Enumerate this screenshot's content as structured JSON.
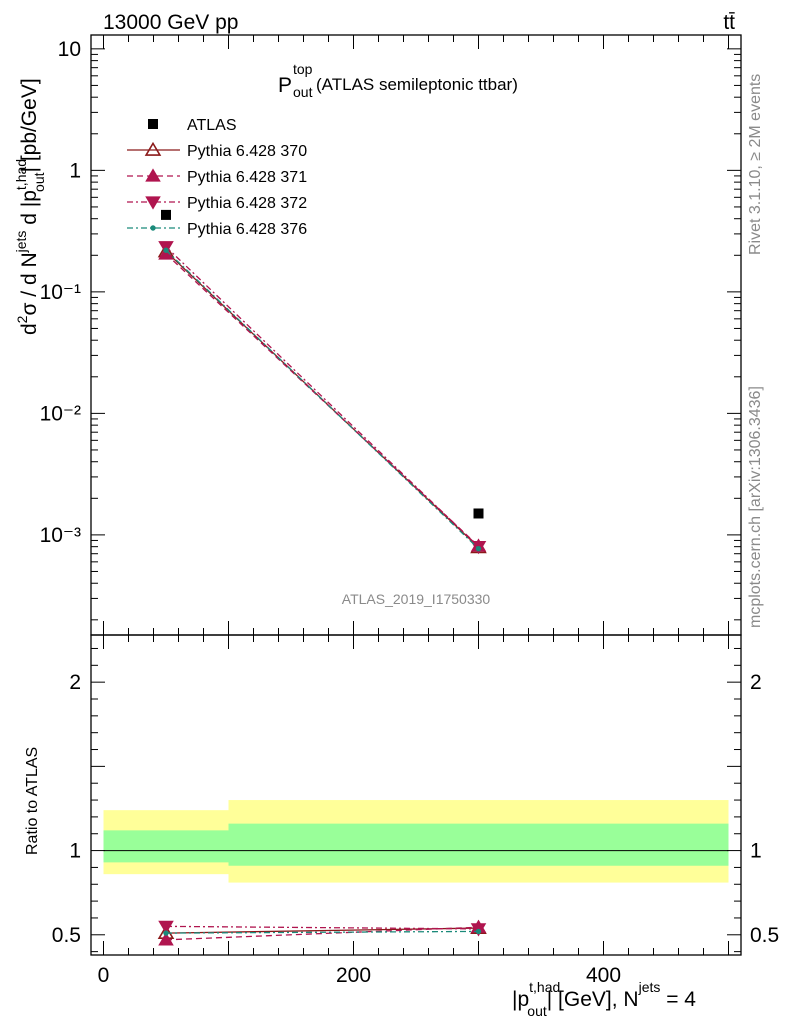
{
  "header": {
    "energy_label": "13000 GeV pp",
    "process_label": "tt̄",
    "plot_title_main": "P",
    "plot_title_sup": "top",
    "plot_title_sub": "out",
    "plot_title_rest": " (ATLAS semileptonic ttbar)",
    "watermark": "ATLAS_2019_I1750330",
    "side_label_top": "Rivet 3.1.10, ≥ 2M events",
    "side_label_bottom": "mcplots.cern.ch [arXiv:1306.3436]"
  },
  "chart_data": [
    {
      "type": "line",
      "title": "P^top_out (ATLAS semileptonic ttbar)",
      "ylabel": "d²σ / d N^jets d |p_out^t,had| [pb/GeV]",
      "yscale": "log",
      "ylim": [
        0.00015,
        13
      ],
      "xlim": [
        -10,
        510
      ],
      "y_ticks": [
        {
          "value": 10,
          "label": "10"
        },
        {
          "value": 1,
          "label": "1"
        },
        {
          "value": 0.1,
          "label": "10⁻¹"
        },
        {
          "value": 0.01,
          "label": "10⁻²"
        },
        {
          "value": 0.001,
          "label": "10⁻³"
        }
      ],
      "legend_position": "top-left",
      "series": [
        {
          "name": "ATLAS",
          "x": [
            50,
            300
          ],
          "y": [
            0.43,
            0.0015
          ],
          "color": "#000000",
          "marker": "square",
          "line": "none"
        },
        {
          "name": "Pythia 6.428 370",
          "x": [
            50,
            300
          ],
          "y": [
            0.215,
            0.00079
          ],
          "color": "#8b1a1a",
          "marker": "triangle-up-open",
          "line": "solid"
        },
        {
          "name": "Pythia 6.428 371",
          "x": [
            50,
            300
          ],
          "y": [
            0.205,
            0.00081
          ],
          "color": "#b0154f",
          "marker": "triangle-up",
          "line": "dashed"
        },
        {
          "name": "Pythia 6.428 372",
          "x": [
            50,
            300
          ],
          "y": [
            0.235,
            0.0008
          ],
          "color": "#b0154f",
          "marker": "triangle-down",
          "line": "dashdot"
        },
        {
          "name": "Pythia 6.428 376",
          "x": [
            50,
            300
          ],
          "y": [
            0.22,
            0.00077
          ],
          "color": "#1b8a7a",
          "marker": "dot",
          "line": "dashdot"
        }
      ]
    },
    {
      "type": "line",
      "ylabel": "Ratio to ATLAS",
      "xlabel": "|p_out^t,had| [GeV], N^jets = 4",
      "ylim": [
        0.38,
        2.28
      ],
      "xlim": [
        -10,
        510
      ],
      "y_ticks": [
        {
          "value": 2,
          "label": "2"
        },
        {
          "value": 1,
          "label": "1"
        },
        {
          "value": 0.5,
          "label": "0.5"
        }
      ],
      "x_ticks": [
        {
          "value": 0,
          "label": "0"
        },
        {
          "value": 200,
          "label": "200"
        },
        {
          "value": 400,
          "label": "400"
        }
      ],
      "bands": [
        {
          "x_from": 0,
          "x_to": 100,
          "inner": [
            0.93,
            1.12
          ],
          "outer": [
            0.86,
            1.24
          ]
        },
        {
          "x_from": 100,
          "x_to": 500,
          "inner": [
            0.91,
            1.16
          ],
          "outer": [
            0.81,
            1.3
          ]
        }
      ],
      "series": [
        {
          "name": "Pythia 6.428 370",
          "x": [
            50,
            300
          ],
          "y": [
            0.51,
            0.54
          ],
          "color": "#8b1a1a",
          "marker": "triangle-up-open",
          "line": "solid"
        },
        {
          "name": "Pythia 6.428 371",
          "x": [
            50,
            300
          ],
          "y": [
            0.47,
            0.545
          ],
          "color": "#b0154f",
          "marker": "triangle-up",
          "line": "dashed"
        },
        {
          "name": "Pythia 6.428 372",
          "x": [
            50,
            300
          ],
          "y": [
            0.55,
            0.535
          ],
          "color": "#b0154f",
          "marker": "triangle-down",
          "line": "dashdot"
        },
        {
          "name": "Pythia 6.428 376",
          "x": [
            50,
            300
          ],
          "y": [
            0.51,
            0.52
          ],
          "color": "#1b8a7a",
          "marker": "dot",
          "line": "dashdot"
        }
      ],
      "band_colors": {
        "inner": "#99ff99",
        "outer": "#ffff99"
      }
    }
  ]
}
